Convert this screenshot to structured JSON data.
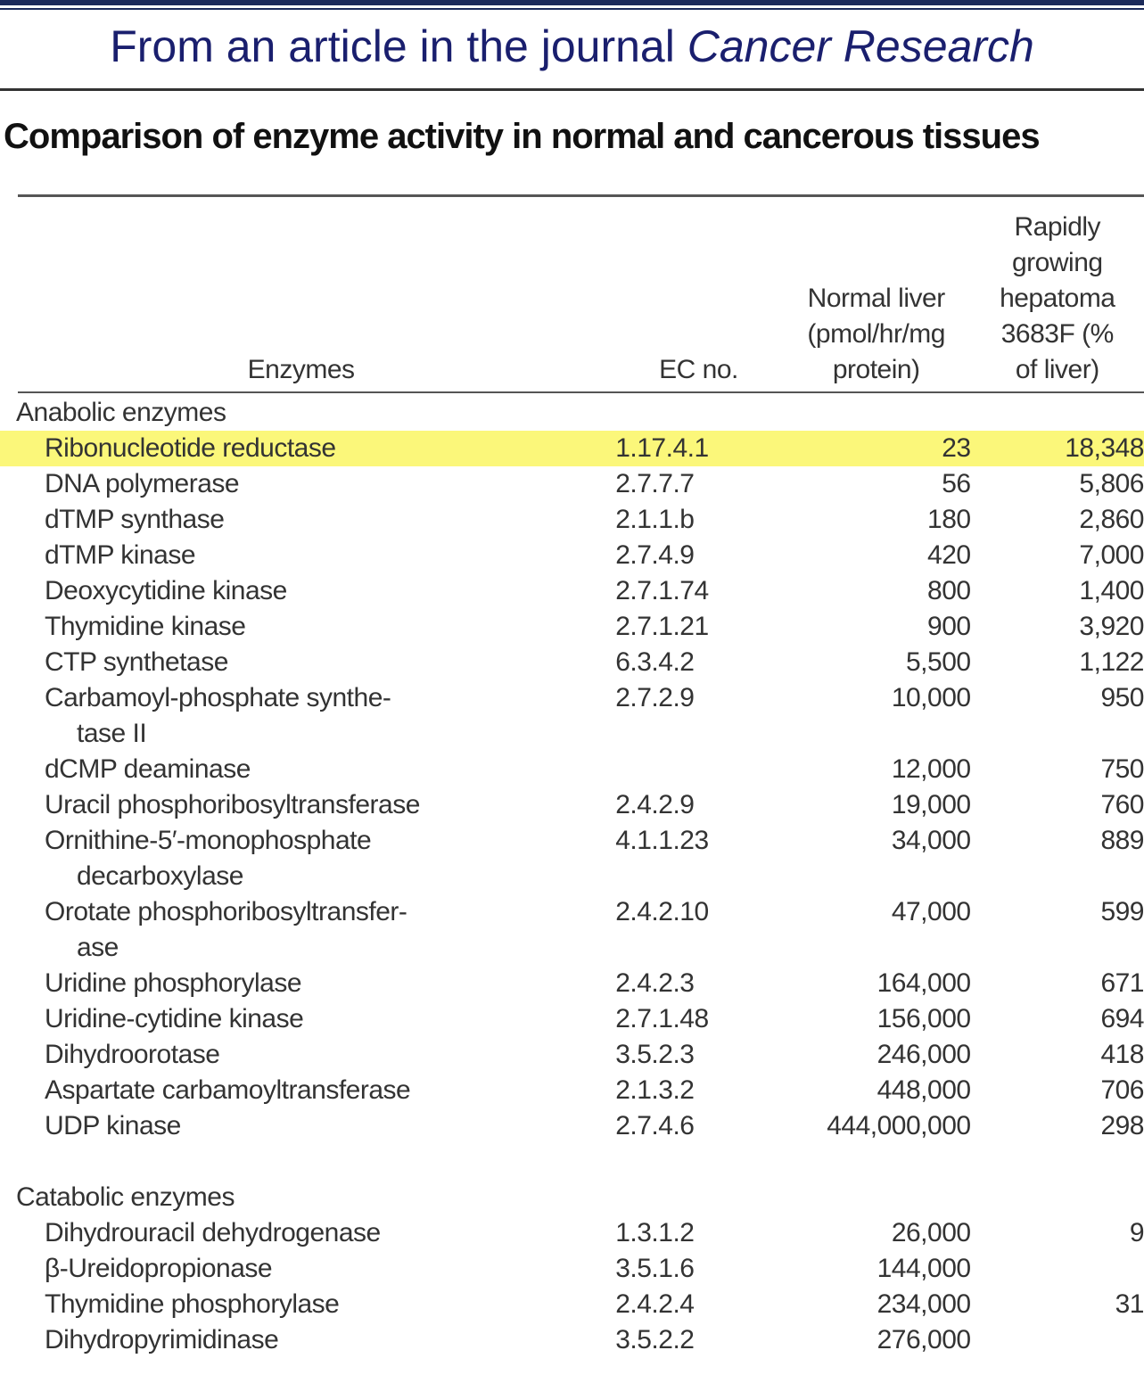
{
  "header": {
    "title_prefix": "From an article in the journal",
    "title_journal": "Cancer Research"
  },
  "table": {
    "title": "Comparison of enzyme activity in normal and cancerous tissues",
    "columns": [
      "Enzymes",
      "EC no.",
      "Normal liver\n(pmol/hr/mg\nprotein)",
      "Rapidly\ngrowing\nhepatoma\n3683F (%\nof liver)"
    ],
    "sections": [
      {
        "label": "Anabolic enzymes",
        "rows": [
          {
            "name": "Ribonucleotide reductase",
            "ec": "1.17.4.1",
            "normal": "23",
            "hepatoma": "18,348",
            "highlighted": true
          },
          {
            "name": "DNA polymerase",
            "ec": "2.7.7.7",
            "normal": "56",
            "hepatoma": "5,806"
          },
          {
            "name": "dTMP synthase",
            "ec": "2.1.1.b",
            "normal": "180",
            "hepatoma": "2,860"
          },
          {
            "name": "dTMP kinase",
            "ec": "2.7.4.9",
            "normal": "420",
            "hepatoma": "7,000"
          },
          {
            "name": "Deoxycytidine kinase",
            "ec": "2.7.1.74",
            "normal": "800",
            "hepatoma": "1,400"
          },
          {
            "name": "Thymidine kinase",
            "ec": "2.7.1.21",
            "normal": "900",
            "hepatoma": "3,920"
          },
          {
            "name": "CTP synthetase",
            "ec": "6.3.4.2",
            "normal": "5,500",
            "hepatoma": "1,122"
          },
          {
            "name": "Carbamoyl-phosphate synthe-\ntase II",
            "ec": "2.7.2.9",
            "normal": "10,000",
            "hepatoma": "950"
          },
          {
            "name": "dCMP deaminase",
            "normal": "12,000",
            "hepatoma": "750"
          },
          {
            "name": "Uracil phosphoribosyltransferase",
            "ec": "2.4.2.9",
            "normal": "19,000",
            "hepatoma": "760"
          },
          {
            "name": "Ornithine-5′-monophosphate\ndecarboxylase",
            "ec": "4.1.1.23",
            "normal": "34,000",
            "hepatoma": "889"
          },
          {
            "name": "Orotate phosphoribosyltransfer-\nase",
            "ec": "2.4.2.10",
            "normal": "47,000",
            "hepatoma": "599"
          },
          {
            "name": "Uridine phosphorylase",
            "ec": "2.4.2.3",
            "normal": "164,000",
            "hepatoma": "671"
          },
          {
            "name": "Uridine-cytidine kinase",
            "ec": "2.7.1.48",
            "normal": "156,000",
            "hepatoma": "694"
          },
          {
            "name": "Dihydroorotase",
            "ec": "3.5.2.3",
            "normal": "246,000",
            "hepatoma": "418"
          },
          {
            "name": "Aspartate carbamoyltransferase",
            "ec": "2.1.3.2",
            "normal": "448,000",
            "hepatoma": "706"
          },
          {
            "name": "UDP kinase",
            "ec": "2.7.4.6",
            "normal": "444,000,000",
            "hepatoma": "298"
          }
        ]
      },
      {
        "label": "Catabolic enzymes",
        "rows": [
          {
            "name": "Dihydrouracil dehydrogenase",
            "ec": "1.3.1.2",
            "normal": "26,000",
            "hepatoma": "9"
          },
          {
            "name": "β-Ureidopropionase",
            "ec": "3.5.1.6",
            "normal": "144,000"
          },
          {
            "name": "Thymidine phosphorylase",
            "ec": "2.4.2.4",
            "normal": "234,000",
            "hepatoma": "31"
          },
          {
            "name": "Dihydropyrimidinase",
            "ec": "3.5.2.2",
            "normal": "276,000"
          }
        ]
      }
    ]
  }
}
